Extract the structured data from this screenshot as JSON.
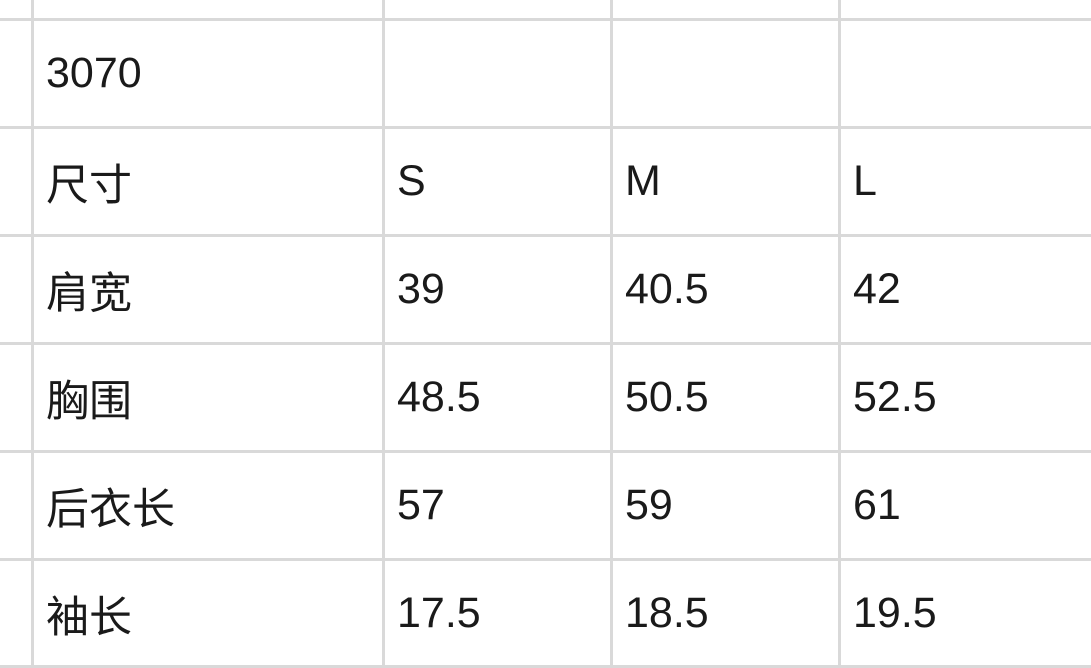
{
  "table": {
    "rows": [
      [
        "3070",
        "",
        "",
        ""
      ],
      [
        "尺寸",
        "S",
        "M",
        "L"
      ],
      [
        "肩宽",
        "39",
        "40.5",
        "42"
      ],
      [
        "胸围",
        "48.5",
        "50.5",
        "52.5"
      ],
      [
        "后衣长",
        "57",
        "59",
        "61"
      ],
      [
        "袖长",
        "17.5",
        "18.5",
        "19.5"
      ]
    ]
  },
  "colors": {
    "gridline": "#d9d9d9",
    "text": "#1a1a1a"
  }
}
